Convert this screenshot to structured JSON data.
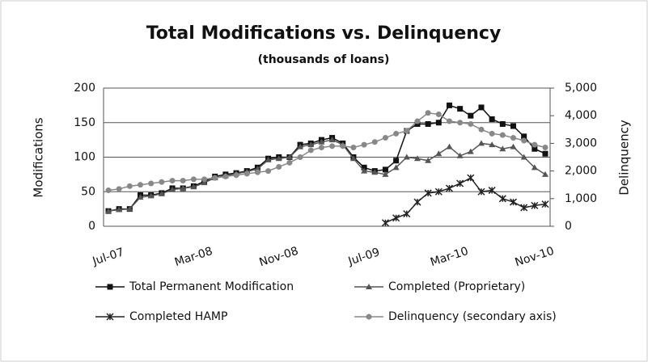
{
  "chart_data": {
    "type": "line",
    "title": "Total Modifications vs. Delinquency",
    "subtitle": "(thousands of loans)",
    "y_label": "Modifications",
    "y2_label": "Delinquency",
    "categories": [
      "Jul-07",
      null,
      null,
      null,
      null,
      null,
      null,
      null,
      "Mar-08",
      null,
      null,
      null,
      null,
      null,
      null,
      null,
      "Nov-08",
      null,
      null,
      null,
      null,
      null,
      null,
      null,
      "Jul-09",
      null,
      null,
      null,
      null,
      null,
      null,
      null,
      "Mar-10",
      null,
      null,
      null,
      null,
      null,
      null,
      null,
      "Nov-10",
      null
    ],
    "ylim": [
      0,
      200
    ],
    "yticks": [
      0,
      50,
      100,
      150,
      200
    ],
    "y2lim": [
      0,
      5000
    ],
    "y2ticks": [
      0,
      {
        "value": 1000,
        "label": "1,000"
      },
      {
        "value": 2000,
        "label": "2,000"
      },
      {
        "value": 3000,
        "label": "3,000"
      },
      {
        "value": 4000,
        "label": "4,000"
      },
      {
        "value": 5000,
        "label": "5,000"
      }
    ],
    "grid": true,
    "series": [
      {
        "name": "Total Permanent Modification",
        "color": "#111111",
        "marker": "square",
        "values": [
          22,
          25,
          25,
          45,
          45,
          48,
          55,
          55,
          58,
          65,
          72,
          75,
          77,
          80,
          85,
          98,
          100,
          100,
          118,
          120,
          125,
          128,
          120,
          100,
          85,
          80,
          82,
          95,
          138,
          148,
          148,
          150,
          175,
          170,
          160,
          172,
          155,
          148,
          145,
          130,
          112,
          105
        ]
      },
      {
        "name": "Completed (Proprietary)",
        "color": "#555555",
        "marker": "triangle",
        "values": [
          22,
          24,
          25,
          42,
          44,
          47,
          53,
          55,
          57,
          63,
          70,
          73,
          76,
          79,
          83,
          96,
          98,
          100,
          115,
          118,
          122,
          125,
          118,
          98,
          80,
          78,
          75,
          85,
          100,
          98,
          95,
          105,
          115,
          102,
          108,
          120,
          118,
          112,
          115,
          100,
          85,
          75
        ]
      },
      {
        "name": "Completed HAMP",
        "color": "#222222",
        "marker": "star",
        "values": [
          null,
          null,
          null,
          null,
          null,
          null,
          null,
          null,
          null,
          null,
          null,
          null,
          null,
          null,
          null,
          null,
          null,
          null,
          null,
          null,
          null,
          null,
          null,
          null,
          null,
          null,
          5,
          12,
          18,
          35,
          48,
          50,
          55,
          62,
          70,
          50,
          52,
          40,
          35,
          27,
          30,
          32
        ]
      },
      {
        "name": "Delinquency (secondary axis)",
        "color": "#888888",
        "marker": "circle",
        "axis": "y2",
        "values": [
          1300,
          1350,
          1450,
          1500,
          1550,
          1600,
          1650,
          1650,
          1700,
          1700,
          1750,
          1800,
          1850,
          1900,
          1950,
          2000,
          2150,
          2300,
          2500,
          2750,
          2850,
          2900,
          2900,
          2850,
          2950,
          3050,
          3200,
          3350,
          3450,
          3800,
          4100,
          4050,
          3800,
          3750,
          3700,
          3500,
          3350,
          3300,
          3200,
          3100,
          2950,
          2850
        ]
      }
    ]
  }
}
